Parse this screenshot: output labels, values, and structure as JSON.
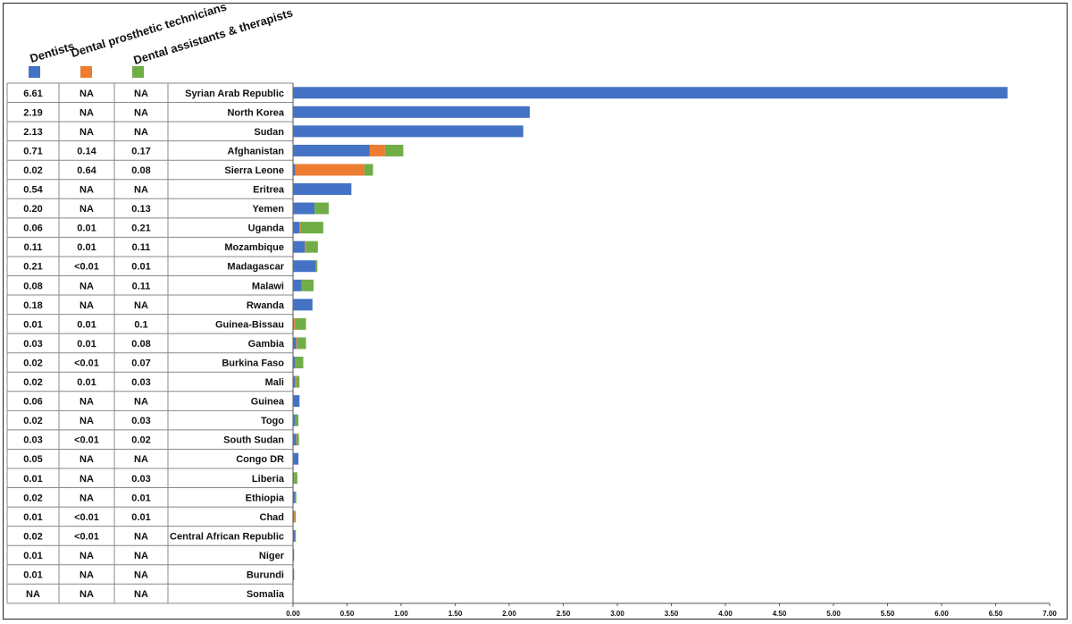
{
  "colors": {
    "dentists": "#4472C4",
    "technicians": "#ED7D31",
    "assistants": "#70AD47"
  },
  "legend": [
    {
      "name": "Dentists",
      "color": "#4472C4"
    },
    {
      "name": "Dental prosthetic technicians",
      "color": "#ED7D31"
    },
    {
      "name": "Dental assistants & therapists",
      "color": "#70AD47"
    }
  ],
  "chart_data": {
    "type": "bar",
    "orientation": "horizontal",
    "stacked": true,
    "categories": [
      "Syrian Arab Republic",
      "North Korea",
      "Sudan",
      "Afghanistan",
      "Sierra Leone",
      "Eritrea",
      "Yemen",
      "Uganda",
      "Mozambique",
      "Madagascar",
      "Malawi",
      "Rwanda",
      "Guinea-Bissau",
      "Gambia",
      "Burkina Faso",
      "Mali",
      "Guinea",
      "Togo",
      "South Sudan",
      "Congo DR",
      "Liberia",
      "Ethiopia",
      "Chad",
      "Central African Republic",
      "Niger",
      "Burundi",
      "Somalia"
    ],
    "series": [
      {
        "name": "Dentists",
        "color": "#4472C4",
        "values": [
          6.61,
          2.19,
          2.13,
          0.71,
          0.02,
          0.54,
          0.2,
          0.06,
          0.11,
          0.21,
          0.08,
          0.18,
          0.01,
          0.03,
          0.02,
          0.02,
          0.06,
          0.02,
          0.03,
          0.05,
          0.01,
          0.02,
          0.01,
          0.02,
          0.01,
          0.01,
          0
        ],
        "labels": [
          "6.61",
          "2.19",
          "2.13",
          "0.71",
          "0.02",
          "0.54",
          "0.20",
          "0.06",
          "0.11",
          "0.21",
          "0.08",
          "0.18",
          "0.01",
          "0.03",
          "0.02",
          "0.02",
          "0.06",
          "0.02",
          "0.03",
          "0.05",
          "0.01",
          "0.02",
          "0.01",
          "0.02",
          "0.01",
          "0.01",
          "NA"
        ]
      },
      {
        "name": "Dental prosthetic technicians",
        "color": "#ED7D31",
        "values": [
          0,
          0,
          0,
          0.14,
          0.64,
          0,
          0,
          0.01,
          0.01,
          0.005,
          0,
          0,
          0.01,
          0.01,
          0.005,
          0.01,
          0,
          0,
          0.005,
          0,
          0,
          0,
          0.005,
          0.005,
          0,
          0,
          0
        ],
        "labels": [
          "NA",
          "NA",
          "NA",
          "0.14",
          "0.64",
          "NA",
          "NA",
          "0.01",
          "0.01",
          "<0.01",
          "NA",
          "NA",
          "0.01",
          "0.01",
          "<0.01",
          "0.01",
          "NA",
          "NA",
          "<0.01",
          "NA",
          "NA",
          "NA",
          "<0.01",
          "<0.01",
          "NA",
          "NA",
          "NA"
        ]
      },
      {
        "name": "Dental assistants & therapists",
        "color": "#70AD47",
        "values": [
          0,
          0,
          0,
          0.17,
          0.08,
          0,
          0.13,
          0.21,
          0.11,
          0.01,
          0.11,
          0,
          0.1,
          0.08,
          0.07,
          0.03,
          0,
          0.03,
          0.02,
          0,
          0.03,
          0.01,
          0.01,
          0,
          0,
          0,
          0
        ],
        "labels": [
          "NA",
          "NA",
          "NA",
          "0.17",
          "0.08",
          "NA",
          "0.13",
          "0.21",
          "0.11",
          "0.01",
          "0.11",
          "NA",
          "0.1",
          "0.08",
          "0.07",
          "0.03",
          "NA",
          "0.03",
          "0.02",
          "NA",
          "0.03",
          "0.01",
          "0.01",
          "NA",
          "NA",
          "NA",
          "NA"
        ]
      }
    ],
    "xlim": [
      0,
      7
    ],
    "xticks": [
      "0.00",
      "0.50",
      "1.00",
      "1.50",
      "2.00",
      "2.50",
      "3.00",
      "3.50",
      "4.00",
      "4.50",
      "5.00",
      "5.50",
      "6.00",
      "6.50",
      "7.00"
    ],
    "grid": false,
    "legend_position": "top-left"
  }
}
